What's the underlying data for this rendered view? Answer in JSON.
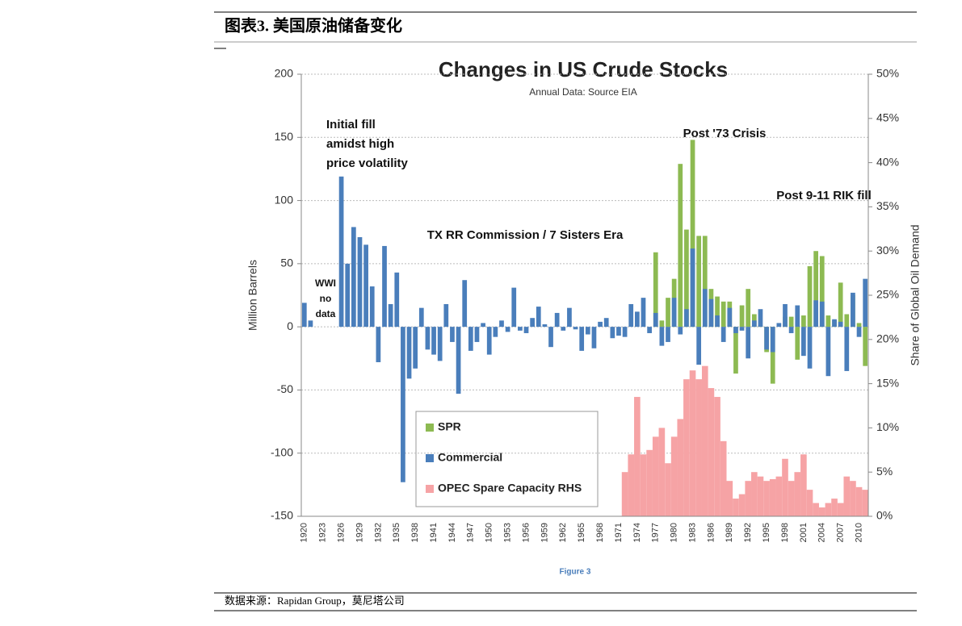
{
  "header": "图表3. 美国原油储备变化",
  "source": "数据来源：Rapidan Group，莫尼塔公司",
  "chart_data": {
    "type": "bar",
    "title": "Changes in US Crude Stocks",
    "subtitle": "Annual Data:  Source EIA",
    "ylabel": "Million Barrels",
    "y2label": "Share of Global Oil Demand",
    "caption": "Figure 3",
    "annotations": [
      [
        "Initial fill",
        "amidst high",
        "price volatility"
      ],
      [
        "WWI",
        "no",
        "data"
      ],
      [
        "TX RR Commission / 7 Sisters Era"
      ],
      [
        "Post '73 Crisis"
      ],
      [
        "Post 9-11 RIK fill"
      ]
    ],
    "grid": true,
    "ylim": [
      -150,
      200
    ],
    "yticks": [
      -150,
      -100,
      -50,
      0,
      50,
      100,
      150,
      200
    ],
    "y2lim": [
      0,
      50
    ],
    "y2ticks": [
      {
        "value": 0,
        "label": "0%"
      },
      {
        "value": 5,
        "label": "5%"
      },
      {
        "value": 10,
        "label": "10%"
      },
      {
        "value": 15,
        "label": "15%"
      },
      {
        "value": 20,
        "label": "20%"
      },
      {
        "value": 25,
        "label": "25%"
      },
      {
        "value": 30,
        "label": "30%"
      },
      {
        "value": 35,
        "label": "35%"
      },
      {
        "value": 40,
        "label": "40%"
      },
      {
        "value": 45,
        "label": "45%"
      },
      {
        "value": 50,
        "label": "50%"
      }
    ],
    "categories": [
      "1920",
      null,
      null,
      "1923",
      null,
      null,
      "1926",
      null,
      null,
      "1929",
      null,
      null,
      "1932",
      null,
      null,
      "1935",
      null,
      null,
      "1938",
      null,
      null,
      "1941",
      null,
      null,
      "1944",
      null,
      null,
      "1947",
      null,
      null,
      "1950",
      null,
      null,
      "1953",
      null,
      null,
      "1956",
      null,
      null,
      "1959",
      null,
      null,
      "1962",
      null,
      null,
      "1965",
      null,
      null,
      "1968",
      null,
      null,
      "1971",
      null,
      null,
      "1974",
      null,
      null,
      "1977",
      null,
      null,
      "1980",
      null,
      null,
      "1983",
      null,
      null,
      "1986",
      null,
      null,
      "1989",
      null,
      null,
      "1992",
      null,
      null,
      "1995",
      null,
      null,
      "1998",
      null,
      null,
      "2001",
      null,
      null,
      "2004",
      null,
      null,
      "2007",
      null,
      null,
      "2010",
      null
    ],
    "series": [
      {
        "name": "OPEC Spare Capacity RHS",
        "color": "#f6a3a5",
        "axis": "y2",
        "values": [
          null,
          null,
          null,
          null,
          null,
          null,
          null,
          null,
          null,
          null,
          null,
          null,
          null,
          null,
          null,
          null,
          null,
          null,
          null,
          null,
          null,
          null,
          null,
          null,
          null,
          null,
          null,
          null,
          null,
          null,
          null,
          null,
          null,
          null,
          null,
          null,
          null,
          null,
          null,
          null,
          null,
          null,
          null,
          null,
          null,
          null,
          null,
          null,
          null,
          null,
          null,
          null,
          5,
          7,
          13.5,
          7,
          7.5,
          9,
          10,
          6,
          9,
          11,
          15.5,
          16.5,
          15.5,
          17,
          14.5,
          13.5,
          8.5,
          4,
          2,
          2.5,
          4,
          5,
          4.5,
          4,
          4.2,
          4.5,
          6.5,
          4,
          5,
          7,
          3,
          1.5,
          1,
          1.5,
          2,
          1.5,
          4.5,
          4,
          3.3,
          3
        ]
      },
      {
        "name": "SPR",
        "color": "#8dba52",
        "values": [
          null,
          null,
          null,
          null,
          null,
          null,
          null,
          null,
          null,
          null,
          null,
          null,
          null,
          null,
          null,
          null,
          null,
          null,
          null,
          null,
          null,
          null,
          null,
          null,
          null,
          null,
          null,
          null,
          null,
          null,
          null,
          null,
          null,
          null,
          null,
          null,
          null,
          null,
          null,
          null,
          null,
          null,
          null,
          null,
          null,
          null,
          null,
          null,
          null,
          null,
          null,
          null,
          null,
          null,
          null,
          null,
          null,
          59,
          5,
          23,
          38,
          129,
          77,
          148,
          72,
          72,
          30,
          24,
          20,
          20,
          -37,
          17,
          30,
          10,
          1,
          -20,
          -45,
          0,
          8,
          8,
          -26,
          9,
          48,
          60,
          56,
          9,
          5,
          35,
          10,
          25,
          3,
          -31
        ]
      },
      {
        "name": "Commercial",
        "color": "#4a7ebb",
        "values": [
          19,
          5,
          null,
          null,
          null,
          null,
          119,
          50,
          79,
          71,
          65,
          32,
          -28,
          64,
          18,
          43,
          -123,
          -41,
          -33,
          15,
          -18,
          -22,
          -27,
          18,
          -12,
          -53,
          37,
          -19,
          -12,
          3,
          -22,
          -8,
          5,
          -4,
          31,
          -3,
          -5,
          7,
          16,
          2,
          -16,
          11,
          -3,
          15,
          -2,
          -19,
          -6,
          -17,
          4,
          7,
          -9,
          -7,
          -8,
          18,
          12,
          23,
          -5,
          11,
          -15,
          -12,
          23,
          -6,
          14,
          62,
          -30,
          30,
          22,
          9,
          -12,
          15,
          -5,
          -3,
          -25,
          5,
          14,
          -18,
          -20,
          3,
          18,
          -5,
          17,
          -23,
          -33,
          21,
          20,
          -39,
          6,
          4,
          -35,
          27,
          -8,
          38
        ]
      }
    ]
  }
}
